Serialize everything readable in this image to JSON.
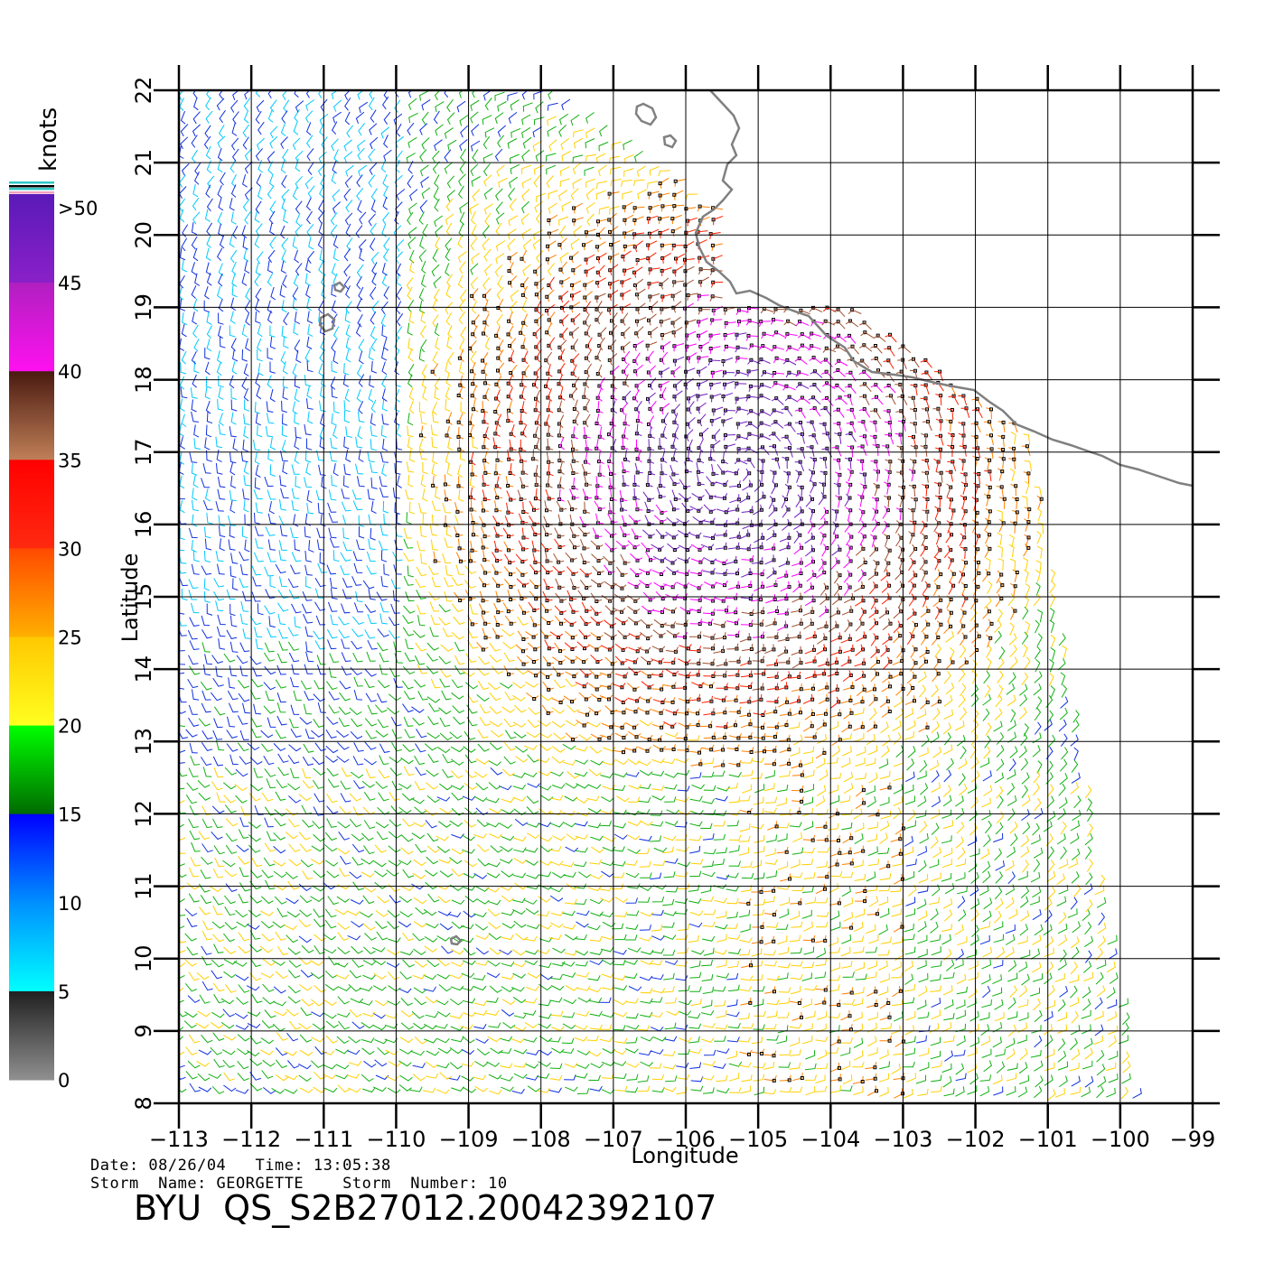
{
  "colorbar": {
    "unit_label": "knots",
    "ticks": [
      ">50",
      "45",
      "40",
      "35",
      "30",
      "25",
      "20",
      "15",
      "10",
      "5",
      "0"
    ],
    "segments": [
      {
        "range": "45-50",
        "colors": [
          "#5a1ab8",
          "#8a20c8"
        ]
      },
      {
        "range": "40-45",
        "colors": [
          "#b020c0",
          "#ff10f0"
        ]
      },
      {
        "range": "35-40",
        "colors": [
          "#4a1a10",
          "#c08058"
        ]
      },
      {
        "range": "30-35",
        "colors": [
          "#ff0000",
          "#ff2a10"
        ]
      },
      {
        "range": "25-30",
        "colors": [
          "#ff4a00",
          "#ffb000"
        ]
      },
      {
        "range": "20-25",
        "colors": [
          "#ffc800",
          "#ffff20"
        ]
      },
      {
        "range": "15-20",
        "colors": [
          "#00ff00",
          "#006a00"
        ]
      },
      {
        "range": "10-15",
        "colors": [
          "#0000ff",
          "#0090ff"
        ]
      },
      {
        "range": "5-10",
        "colors": [
          "#0090ff",
          "#00ffff"
        ]
      },
      {
        "range": "0-5",
        "colors": [
          "#202020",
          "#909090"
        ]
      }
    ]
  },
  "axes": {
    "xlabel": "Longitude",
    "ylabel": "Latitude",
    "lon_ticks": [
      "−113",
      "−112",
      "−111",
      "−110",
      "−109",
      "−108",
      "−107",
      "−106",
      "−105",
      "−104",
      "−103",
      "−102",
      "−101",
      "−100",
      "−99"
    ],
    "lat_ticks": [
      "8",
      "9",
      "10",
      "11",
      "12",
      "13",
      "14",
      "15",
      "16",
      "17",
      "18",
      "19",
      "20",
      "21",
      "22"
    ],
    "lon_range": [
      -113,
      -99
    ],
    "lat_range": [
      8,
      22
    ],
    "grid": true
  },
  "chart_data": {
    "type": "wind_barb_map",
    "units": "knots",
    "speed_color_classes": [
      {
        "min": 0,
        "max": 5,
        "color": "#404040"
      },
      {
        "min": 5,
        "max": 10,
        "color": "#00c8ff"
      },
      {
        "min": 10,
        "max": 15,
        "color": "#1030e0"
      },
      {
        "min": 15,
        "max": 20,
        "color": "#10b010"
      },
      {
        "min": 20,
        "max": 25,
        "color": "#ffd000"
      },
      {
        "min": 25,
        "max": 30,
        "color": "#ff8000"
      },
      {
        "min": 30,
        "max": 35,
        "color": "#ff2000"
      },
      {
        "min": 35,
        "max": 40,
        "color": "#a05030"
      },
      {
        "min": 40,
        "max": 45,
        "color": "#ff00ff"
      },
      {
        "min": 45,
        "max": 50,
        "color": "#7020c0"
      }
    ],
    "storm_center_approx": {
      "lon": -105.3,
      "lat": 16.8
    },
    "coastline_color": "#808080"
  },
  "footer": {
    "date_label": "Date: 08/26/04   Time: 13:05:38",
    "storm_label": "Storm  Name: GEORGETTE    Storm  Number: 10",
    "product_id": "BYU  QS_S2B27012.20042392107"
  }
}
